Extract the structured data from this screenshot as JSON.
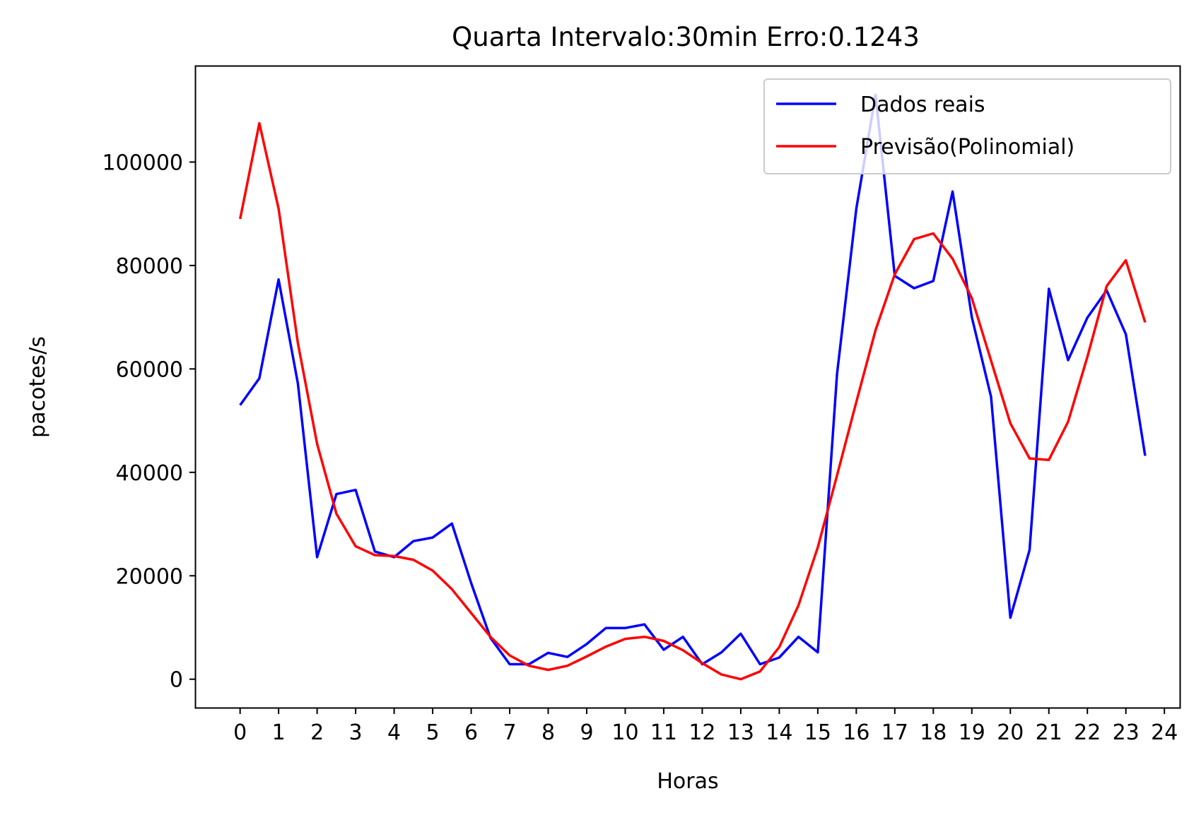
{
  "chart_data": {
    "type": "line",
    "title": "Quarta Intervalo:30min Erro:0.1243",
    "xlabel": "Horas",
    "ylabel": "pacotes/s",
    "xlim": [
      -1.15,
      24.4
    ],
    "ylim": [
      -5500,
      118500
    ],
    "xticks": [
      0,
      1,
      2,
      3,
      4,
      5,
      6,
      7,
      8,
      9,
      10,
      11,
      12,
      13,
      14,
      15,
      16,
      17,
      18,
      19,
      20,
      21,
      22,
      23,
      24
    ],
    "xtick_labels": [
      "0",
      "1",
      "2",
      "3",
      "4",
      "5",
      "6",
      "7",
      "8",
      "9",
      "10",
      "11",
      "12",
      "13",
      "14",
      "15",
      "16",
      "17",
      "18",
      "19",
      "20",
      "21",
      "22",
      "23",
      "24"
    ],
    "yticks": [
      0,
      20000,
      40000,
      60000,
      80000,
      100000
    ],
    "ytick_labels": [
      "0",
      "20000",
      "40000",
      "60000",
      "80000",
      "100000"
    ],
    "grid": false,
    "legend_position": "top-right",
    "x": [
      0,
      0.5,
      1,
      1.5,
      2,
      2.5,
      3,
      3.5,
      4,
      4.5,
      5,
      5.5,
      6,
      6.5,
      7,
      7.5,
      8,
      8.5,
      9,
      9.5,
      10,
      10.5,
      11,
      11.5,
      12,
      12.5,
      13,
      13.5,
      14,
      14.5,
      15,
      15.5,
      16,
      16.5,
      17,
      17.5,
      18,
      18.5,
      19,
      19.5,
      20,
      20.5,
      21,
      21.5,
      22,
      22.5,
      23,
      23.5
    ],
    "series": [
      {
        "name": "Dados reais",
        "color": "#0000ff",
        "values": [
          53000,
          58200,
          77300,
          57200,
          23600,
          35800,
          36600,
          24700,
          23600,
          26700,
          27400,
          30100,
          18600,
          8000,
          2900,
          2900,
          5100,
          4300,
          6800,
          9900,
          9900,
          10600,
          5700,
          8200,
          2900,
          5200,
          8800,
          2900,
          4200,
          8200,
          5200,
          59000,
          91000,
          113000,
          78000,
          75600,
          77000,
          94300,
          70000,
          54600,
          11900,
          25000,
          75500,
          61700,
          69900,
          75200,
          66700,
          43200
        ]
      },
      {
        "name": "Previsão(Polinomial)",
        "color": "#ff0000",
        "values": [
          89000,
          107500,
          91000,
          65000,
          45500,
          32000,
          25700,
          24000,
          23800,
          23100,
          21000,
          17400,
          12800,
          8200,
          4600,
          2600,
          1800,
          2600,
          4400,
          6300,
          7800,
          8200,
          7400,
          5600,
          3100,
          900,
          0,
          1500,
          6200,
          14300,
          25500,
          39400,
          53600,
          67500,
          78300,
          85100,
          86200,
          81300,
          73700,
          61600,
          49500,
          42700,
          42400,
          49800,
          62300,
          76000,
          81000,
          69000
        ]
      }
    ]
  }
}
